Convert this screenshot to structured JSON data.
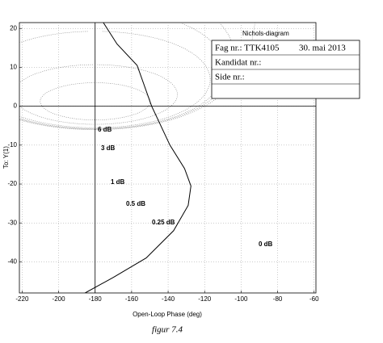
{
  "chart_data": {
    "type": "line",
    "title": "Nichols-diagram",
    "xlabel": "Open-Loop Phase (deg)",
    "ylabel": "To: Y(1)",
    "caption": "figur 7.4",
    "info_box": {
      "course": "Fag nr.: TTK4105",
      "date": "30. mai 2013",
      "candidate": "Kandidat nr.:",
      "page": "Side nr.:"
    },
    "x": [
      -175.5,
      -168,
      -157,
      -149,
      -139,
      -131,
      -127.5,
      -129,
      -137,
      -152,
      -170,
      -185.5
    ],
    "values": [
      21.5,
      16,
      10.5,
      0,
      -10,
      -16,
      -20.5,
      -25.5,
      -32,
      -39,
      -44,
      -48
    ],
    "color": "#000000",
    "m_contours": [
      {
        "value": 6,
        "label": "6 dB"
      },
      {
        "value": 3,
        "label": "3 dB"
      },
      {
        "value": 1,
        "label": "1 dB"
      },
      {
        "value": 0.5,
        "label": "0.5 dB"
      },
      {
        "value": 0.25,
        "label": "0.25 dB"
      },
      {
        "value": 0,
        "label": "0 dB"
      }
    ],
    "crosshair": {
      "x": -180,
      "y": 0
    },
    "xlim": [
      -221.5,
      -59
    ],
    "ylim": [
      -48,
      21.5
    ],
    "xticks": [
      -220,
      -200,
      -180,
      -160,
      -140,
      -120,
      -100,
      -80,
      -60
    ],
    "yticks": [
      -40,
      -30,
      -20,
      -10,
      0,
      10,
      20
    ],
    "grid": true
  }
}
